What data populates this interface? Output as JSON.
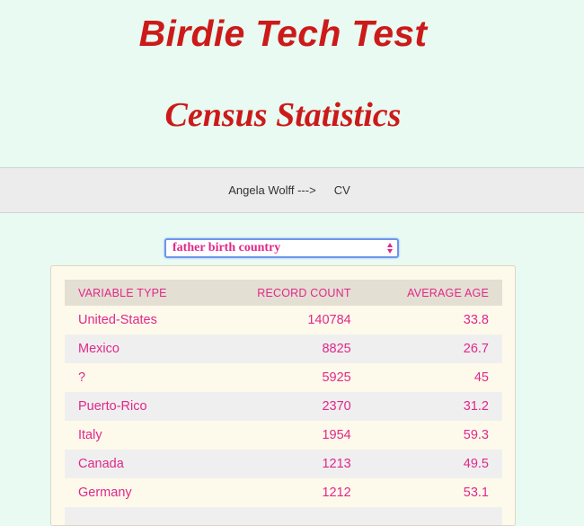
{
  "header": {
    "title": "Birdie Tech Test",
    "subtitle": "Census Statistics"
  },
  "nav": {
    "author_link": "Angela Wolff --->",
    "cv_link": "CV"
  },
  "variable_select": {
    "selected_value": "father birth country"
  },
  "table": {
    "columns": {
      "variable_type": "VARIABLE TYPE",
      "record_count": "RECORD COUNT",
      "average_age": "AVERAGE AGE"
    },
    "rows": [
      {
        "variable": "United-States",
        "count": "140784",
        "age": "33.8"
      },
      {
        "variable": "Mexico",
        "count": "8825",
        "age": "26.7"
      },
      {
        "variable": "?",
        "count": "5925",
        "age": "45"
      },
      {
        "variable": "Puerto-Rico",
        "count": "2370",
        "age": "31.2"
      },
      {
        "variable": "Italy",
        "count": "1954",
        "age": "59.3"
      },
      {
        "variable": "Canada",
        "count": "1213",
        "age": "49.5"
      },
      {
        "variable": "Germany",
        "count": "1212",
        "age": "53.1"
      },
      {
        "variable": "",
        "count": "",
        "age": ""
      }
    ]
  },
  "colors": {
    "title_red": "#cc1a1a",
    "accent_pink": "#e0288a",
    "page_background": "#e8faf1"
  }
}
